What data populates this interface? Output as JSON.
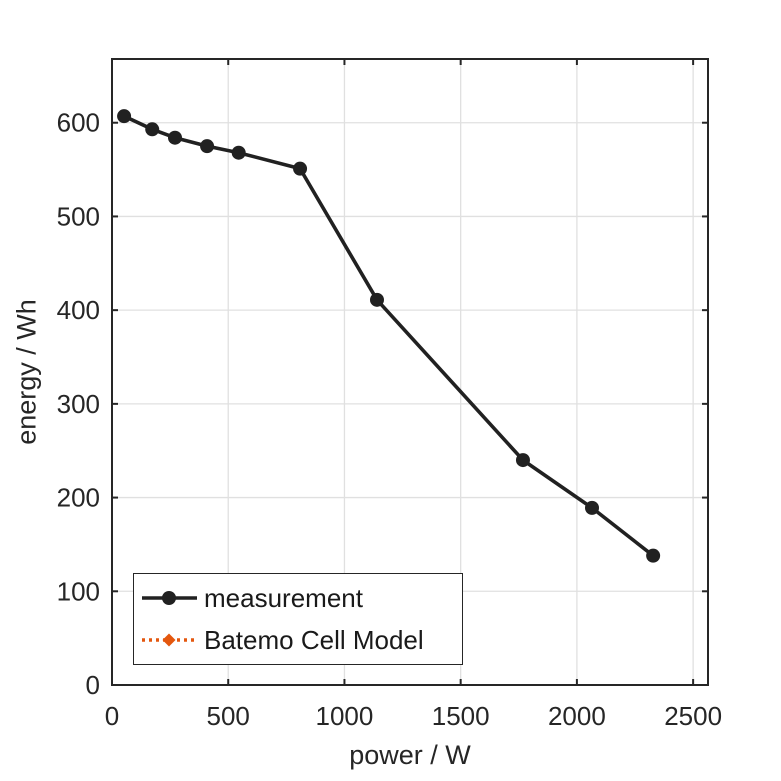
{
  "figure": {
    "background": "#ffffff",
    "title": ""
  },
  "chart_data": {
    "type": "line",
    "title": "",
    "xlabel": "power / W",
    "ylabel": "energy / Wh",
    "xlim": [
      0,
      2564
    ],
    "ylim": [
      0,
      668
    ],
    "xticks": [
      0,
      500,
      1000,
      1500,
      2000,
      2500
    ],
    "yticks": [
      0,
      100,
      200,
      300,
      400,
      500,
      600
    ],
    "grid": true,
    "legend_position": "southwest",
    "series": [
      {
        "name": "measurement",
        "color": "#212121",
        "line_style": "solid",
        "marker": "circle",
        "visible_in_plot": true,
        "x": [
          52,
          173,
          271,
          409,
          545,
          809,
          1140,
          1768,
          2065,
          2328
        ],
        "y": [
          607,
          593,
          584,
          575,
          568,
          551,
          411,
          240,
          189,
          138
        ]
      },
      {
        "name": "Batemo Cell Model",
        "color": "#E4570E",
        "line_style": "dotted",
        "marker": "diamond",
        "visible_in_plot": false,
        "x": [],
        "y": []
      }
    ]
  },
  "style_colors": {
    "spine": "#262626",
    "grid": "#E0E0E0",
    "tick_text": "#262626",
    "legend_border": "#262626",
    "legend_text": "#1a1a1a"
  }
}
